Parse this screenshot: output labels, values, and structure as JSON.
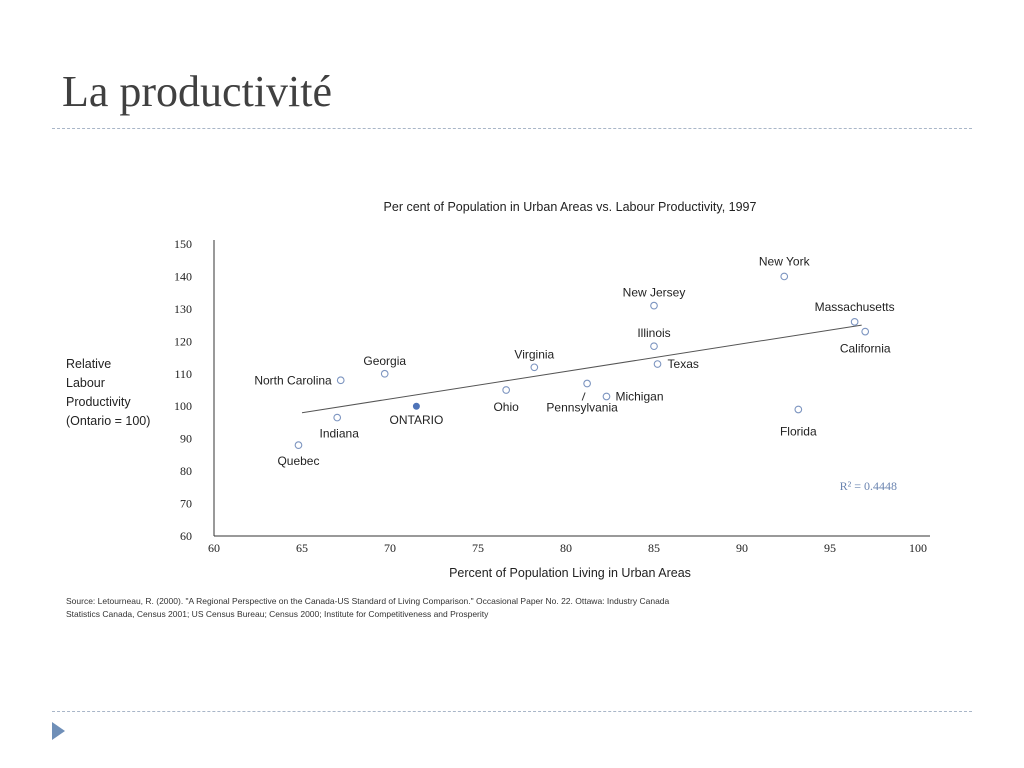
{
  "slide": {
    "title": "La productivité"
  },
  "colors": {
    "marker": "#7d95c0",
    "ontario_marker": "#4f74b8",
    "line": "#555555",
    "rule": "#a9b6c8",
    "accent": "#6f8fb8"
  },
  "icons": {
    "nav": "play-triangle-icon"
  },
  "chart_data": {
    "type": "scatter",
    "title": "Per cent of Population in Urban Areas vs. Labour Productivity, 1997",
    "xlabel": "Percent of Population Living in Urban Areas",
    "ylabel_lines": [
      "Relative",
      "Labour",
      "Productivity",
      "(Ontario = 100)"
    ],
    "xlim": [
      60,
      100
    ],
    "ylim": [
      60,
      150
    ],
    "xticks": [
      60,
      65,
      70,
      75,
      80,
      85,
      90,
      95,
      100
    ],
    "yticks": [
      60,
      70,
      80,
      90,
      100,
      110,
      120,
      130,
      140,
      150
    ],
    "grid": false,
    "points": [
      {
        "label": "New York",
        "x": 92.4,
        "y": 140,
        "highlight": false
      },
      {
        "label": "New Jersey",
        "x": 85.0,
        "y": 131,
        "highlight": false
      },
      {
        "label": "Massachusetts",
        "x": 96.4,
        "y": 126,
        "highlight": false
      },
      {
        "label": "California",
        "x": 97.0,
        "y": 123,
        "highlight": false
      },
      {
        "label": "Illinois",
        "x": 85.0,
        "y": 118.5,
        "highlight": false
      },
      {
        "label": "Texas",
        "x": 85.2,
        "y": 113,
        "highlight": false
      },
      {
        "label": "Virginia",
        "x": 78.2,
        "y": 112,
        "highlight": false
      },
      {
        "label": "Georgia",
        "x": 69.7,
        "y": 110,
        "highlight": false
      },
      {
        "label": "North Carolina",
        "x": 67.2,
        "y": 108,
        "highlight": false
      },
      {
        "label": "Pennsylvania",
        "x": 81.2,
        "y": 107,
        "highlight": false
      },
      {
        "label": "Ohio",
        "x": 76.6,
        "y": 105,
        "highlight": false
      },
      {
        "label": "Michigan",
        "x": 82.3,
        "y": 103,
        "highlight": false
      },
      {
        "label": "ONTARIO",
        "x": 71.5,
        "y": 100,
        "highlight": true
      },
      {
        "label": "Florida",
        "x": 93.2,
        "y": 99,
        "highlight": false
      },
      {
        "label": "Indiana",
        "x": 67.0,
        "y": 96.5,
        "highlight": false
      },
      {
        "label": "Quebec",
        "x": 64.8,
        "y": 88,
        "highlight": false
      }
    ],
    "trendline": {
      "x": [
        65,
        96.8
      ],
      "y": [
        98,
        125
      ]
    },
    "annotation": "R² = 0.4448"
  },
  "source": {
    "line1": "Source: Letourneau, R. (2000). \"A Regional Perspective on the Canada-US Standard of Living Comparison.\" Occasional Paper No. 22. Ottawa: Industry Canada",
    "line2": "Statistics Canada, Census 2001; US Census Bureau; Census 2000; Institute for Competitiveness and Prosperity"
  }
}
